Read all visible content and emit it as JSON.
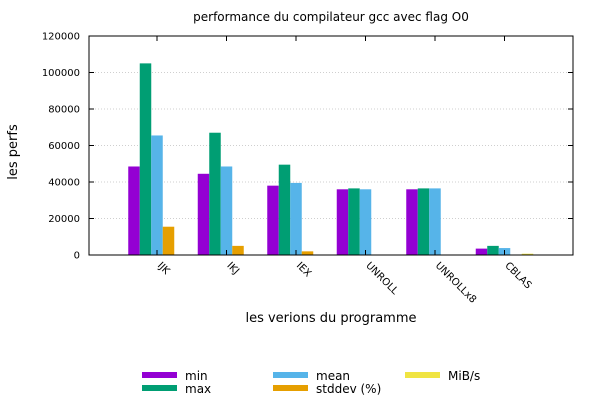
{
  "chart_data": {
    "type": "bar",
    "title": "performance du compilateur gcc avec flag O0",
    "xlabel": "les verions du programme",
    "ylabel": "les perfs",
    "ylim": [
      0,
      120000
    ],
    "yticks": [
      "0",
      "20000",
      "40000",
      "60000",
      "80000",
      "100000",
      "120000"
    ],
    "grid": true,
    "legend_position": "bottom",
    "categories": [
      "IJK",
      "IKJ",
      "IEX",
      "UNROLL",
      "UNROLLx8",
      "CBLAS"
    ],
    "series": [
      {
        "name": "min",
        "color": "#9400d3",
        "values": [
          48500,
          44500,
          38000,
          36000,
          36000,
          3500
        ]
      },
      {
        "name": "max",
        "color": "#009e73",
        "values": [
          105000,
          67000,
          49500,
          36500,
          36500,
          5000
        ]
      },
      {
        "name": "mean",
        "color": "#56b4e9",
        "values": [
          65500,
          48500,
          39500,
          36000,
          36500,
          3800
        ]
      },
      {
        "name": "stddev (%)",
        "color": "#e69f00",
        "values": [
          15500,
          5000,
          2000,
          0,
          0,
          0
        ]
      },
      {
        "name": "MiB/s",
        "color": "#f0e442",
        "values": [
          0,
          0,
          0,
          0,
          0,
          700
        ]
      }
    ]
  }
}
